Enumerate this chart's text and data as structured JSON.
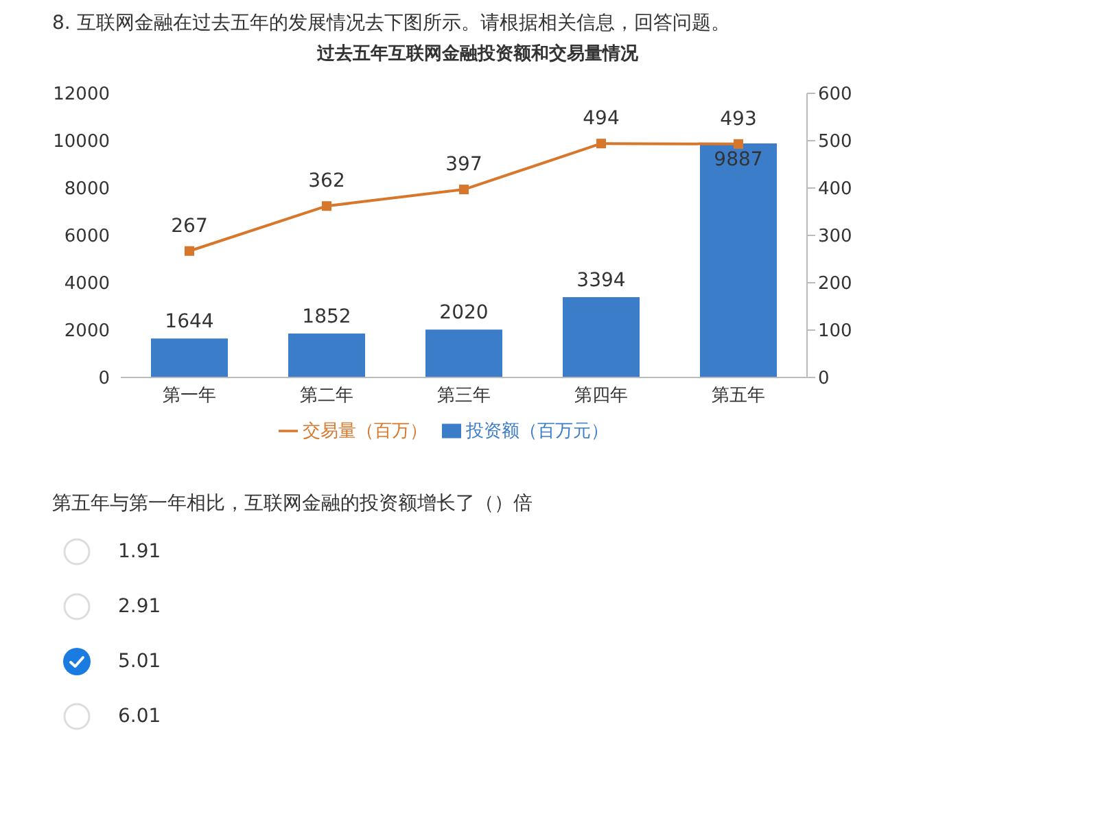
{
  "chart_data": {
    "type": "bar",
    "title": "过去五年互联网金融投资额和交易量情况",
    "categories": [
      "第一年",
      "第二年",
      "第三年",
      "第四年",
      "第五年"
    ],
    "series": [
      {
        "name": "投资额（百万元）",
        "color": "#3b7dc9",
        "values": [
          1644,
          1852,
          2020,
          3394,
          9887
        ]
      },
      {
        "name": "交易量（百万）",
        "type": "line",
        "axis": "y2",
        "color": "#d6772b",
        "values": [
          267,
          362,
          397,
          494,
          493
        ]
      }
    ],
    "ylim": [
      0,
      12000
    ],
    "yticks": [
      0,
      2000,
      4000,
      6000,
      8000,
      10000,
      12000
    ],
    "y2lim": [
      0,
      600
    ],
    "y2ticks": [
      0,
      100,
      200,
      300,
      400,
      500,
      600
    ],
    "data_labels": true,
    "legend": "bottom",
    "marker": "square",
    "line_style": "solid",
    "annotations": [
      "8.  互联网金融在过去五年的发展情况去下图所示。请根据相关信息，回答问题。",
      "第五年与第一年相比，互联网金融的投资额增长了（）倍",
      "1.91",
      "2.91",
      "5.01",
      "6.01"
    ]
  }
}
